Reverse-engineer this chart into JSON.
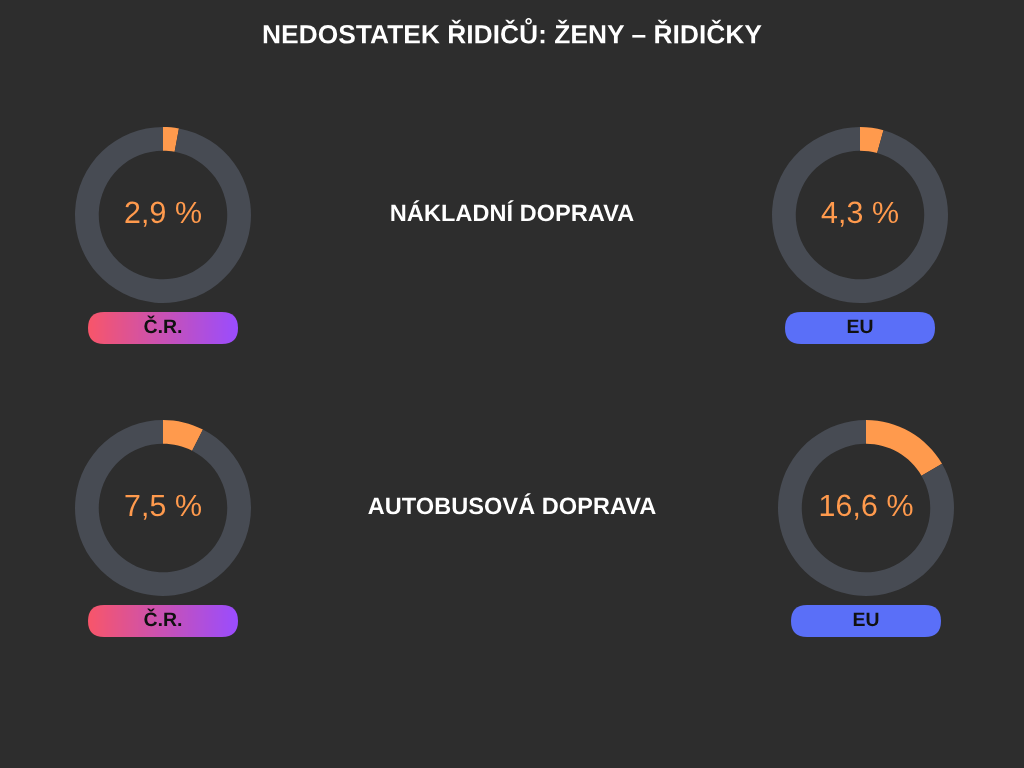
{
  "chart_data": [
    {
      "type": "other",
      "title": "NEDOSTATEK ŘIDIČŮ: ŽENY – ŘIDIČKY",
      "annotations": [
        "NÁKLADNÍ DOPRAVA",
        "AUTOBUSOVÁ DOPRAVA"
      ]
    },
    {
      "type": "donut",
      "title": "Č.R.",
      "categories": [
        null,
        null
      ],
      "values": [
        2.9,
        97.1
      ],
      "colors": [
        "#ff9a4d",
        "#474b53"
      ],
      "value_labels": [
        "2,9 %",
        null
      ]
    },
    {
      "type": "donut",
      "title": "EU",
      "categories": [
        null,
        null
      ],
      "values": [
        4.3,
        95.7
      ],
      "colors": [
        "#ff9a4d",
        "#474b53"
      ],
      "value_labels": [
        "4,3 %",
        null
      ]
    },
    {
      "type": "donut",
      "title": "Č.R.",
      "categories": [
        null,
        null
      ],
      "values": [
        7.5,
        92.5
      ],
      "colors": [
        "#ff9a4d",
        "#474b53"
      ],
      "value_labels": [
        "7,5 %",
        null
      ]
    },
    {
      "type": "donut",
      "title": "EU",
      "categories": [
        null,
        null
      ],
      "values": [
        16.6,
        83.4
      ],
      "colors": [
        "#ff9a4d",
        "#474b53"
      ],
      "value_labels": [
        "16,6 %",
        null
      ]
    }
  ]
}
